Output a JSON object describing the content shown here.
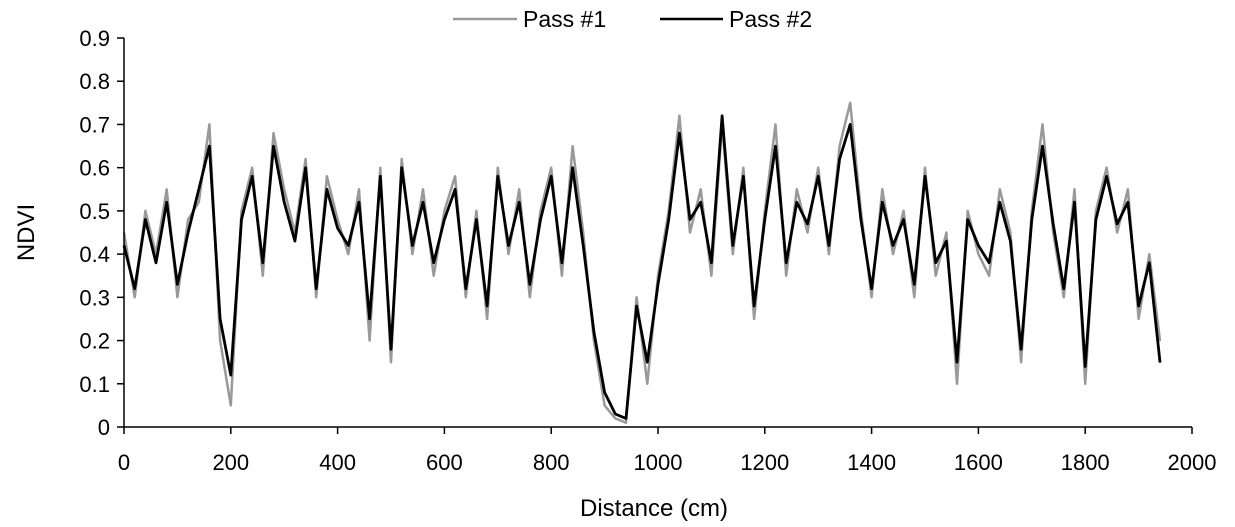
{
  "chart_data": {
    "type": "line",
    "title": "",
    "xlabel": "Distance (cm)",
    "ylabel": "NDVI",
    "xlim": [
      0,
      2000
    ],
    "ylim": [
      0,
      0.9
    ],
    "xticks": [
      0,
      200,
      400,
      600,
      800,
      1000,
      1200,
      1400,
      1600,
      1800,
      2000
    ],
    "yticks": [
      "0",
      "0.1",
      "0.2",
      "0.3",
      "0.4",
      "0.5",
      "0.6",
      "0.7",
      "0.8",
      "0.9"
    ],
    "legend_position": "top-center",
    "grid": false,
    "series": [
      {
        "name": "Pass #1",
        "color": "#999999",
        "x": [
          0,
          20,
          40,
          60,
          80,
          100,
          120,
          140,
          160,
          180,
          200,
          220,
          240,
          260,
          280,
          300,
          320,
          340,
          360,
          380,
          400,
          420,
          440,
          460,
          480,
          500,
          520,
          540,
          560,
          580,
          600,
          620,
          640,
          660,
          680,
          700,
          720,
          740,
          760,
          780,
          800,
          820,
          840,
          860,
          880,
          900,
          920,
          940,
          960,
          980,
          1000,
          1020,
          1040,
          1060,
          1080,
          1100,
          1120,
          1140,
          1160,
          1180,
          1200,
          1220,
          1240,
          1260,
          1280,
          1300,
          1320,
          1340,
          1360,
          1380,
          1400,
          1420,
          1440,
          1460,
          1480,
          1500,
          1520,
          1540,
          1560,
          1580,
          1600,
          1620,
          1640,
          1660,
          1680,
          1700,
          1720,
          1740,
          1760,
          1780,
          1800,
          1820,
          1840,
          1860,
          1880,
          1900,
          1920,
          1940
        ],
        "values": [
          0.45,
          0.3,
          0.5,
          0.4,
          0.55,
          0.3,
          0.48,
          0.52,
          0.7,
          0.2,
          0.05,
          0.5,
          0.6,
          0.35,
          0.68,
          0.55,
          0.45,
          0.62,
          0.3,
          0.58,
          0.48,
          0.4,
          0.55,
          0.2,
          0.6,
          0.15,
          0.62,
          0.4,
          0.55,
          0.35,
          0.5,
          0.58,
          0.3,
          0.5,
          0.25,
          0.6,
          0.4,
          0.55,
          0.3,
          0.5,
          0.6,
          0.35,
          0.65,
          0.45,
          0.2,
          0.05,
          0.02,
          0.01,
          0.3,
          0.1,
          0.35,
          0.5,
          0.72,
          0.45,
          0.55,
          0.35,
          0.7,
          0.4,
          0.6,
          0.25,
          0.5,
          0.7,
          0.35,
          0.55,
          0.45,
          0.6,
          0.4,
          0.65,
          0.75,
          0.5,
          0.3,
          0.55,
          0.4,
          0.5,
          0.3,
          0.6,
          0.35,
          0.45,
          0.1,
          0.5,
          0.4,
          0.35,
          0.55,
          0.45,
          0.15,
          0.5,
          0.7,
          0.45,
          0.3,
          0.55,
          0.1,
          0.5,
          0.6,
          0.45,
          0.55,
          0.25,
          0.4,
          0.2
        ]
      },
      {
        "name": "Pass #2",
        "color": "#000000",
        "x": [
          0,
          20,
          40,
          60,
          80,
          100,
          120,
          140,
          160,
          180,
          200,
          220,
          240,
          260,
          280,
          300,
          320,
          340,
          360,
          380,
          400,
          420,
          440,
          460,
          480,
          500,
          520,
          540,
          560,
          580,
          600,
          620,
          640,
          660,
          680,
          700,
          720,
          740,
          760,
          780,
          800,
          820,
          840,
          860,
          880,
          900,
          920,
          940,
          960,
          980,
          1000,
          1020,
          1040,
          1060,
          1080,
          1100,
          1120,
          1140,
          1160,
          1180,
          1200,
          1220,
          1240,
          1260,
          1280,
          1300,
          1320,
          1340,
          1360,
          1380,
          1400,
          1420,
          1440,
          1460,
          1480,
          1500,
          1520,
          1540,
          1560,
          1580,
          1600,
          1620,
          1640,
          1660,
          1680,
          1700,
          1720,
          1740,
          1760,
          1780,
          1800,
          1820,
          1840,
          1860,
          1880,
          1900,
          1920,
          1940
        ],
        "values": [
          0.42,
          0.32,
          0.48,
          0.38,
          0.52,
          0.33,
          0.45,
          0.55,
          0.65,
          0.25,
          0.12,
          0.48,
          0.58,
          0.38,
          0.65,
          0.52,
          0.43,
          0.6,
          0.32,
          0.55,
          0.46,
          0.42,
          0.52,
          0.25,
          0.58,
          0.18,
          0.6,
          0.42,
          0.52,
          0.38,
          0.48,
          0.55,
          0.32,
          0.48,
          0.28,
          0.58,
          0.42,
          0.52,
          0.33,
          0.48,
          0.58,
          0.38,
          0.6,
          0.42,
          0.22,
          0.08,
          0.03,
          0.02,
          0.28,
          0.15,
          0.33,
          0.48,
          0.68,
          0.48,
          0.52,
          0.38,
          0.72,
          0.42,
          0.58,
          0.28,
          0.48,
          0.65,
          0.38,
          0.52,
          0.47,
          0.58,
          0.42,
          0.62,
          0.7,
          0.48,
          0.32,
          0.52,
          0.42,
          0.48,
          0.33,
          0.58,
          0.38,
          0.43,
          0.15,
          0.48,
          0.42,
          0.38,
          0.52,
          0.43,
          0.18,
          0.48,
          0.65,
          0.47,
          0.32,
          0.52,
          0.14,
          0.48,
          0.58,
          0.47,
          0.52,
          0.28,
          0.38,
          0.15
        ]
      }
    ]
  }
}
